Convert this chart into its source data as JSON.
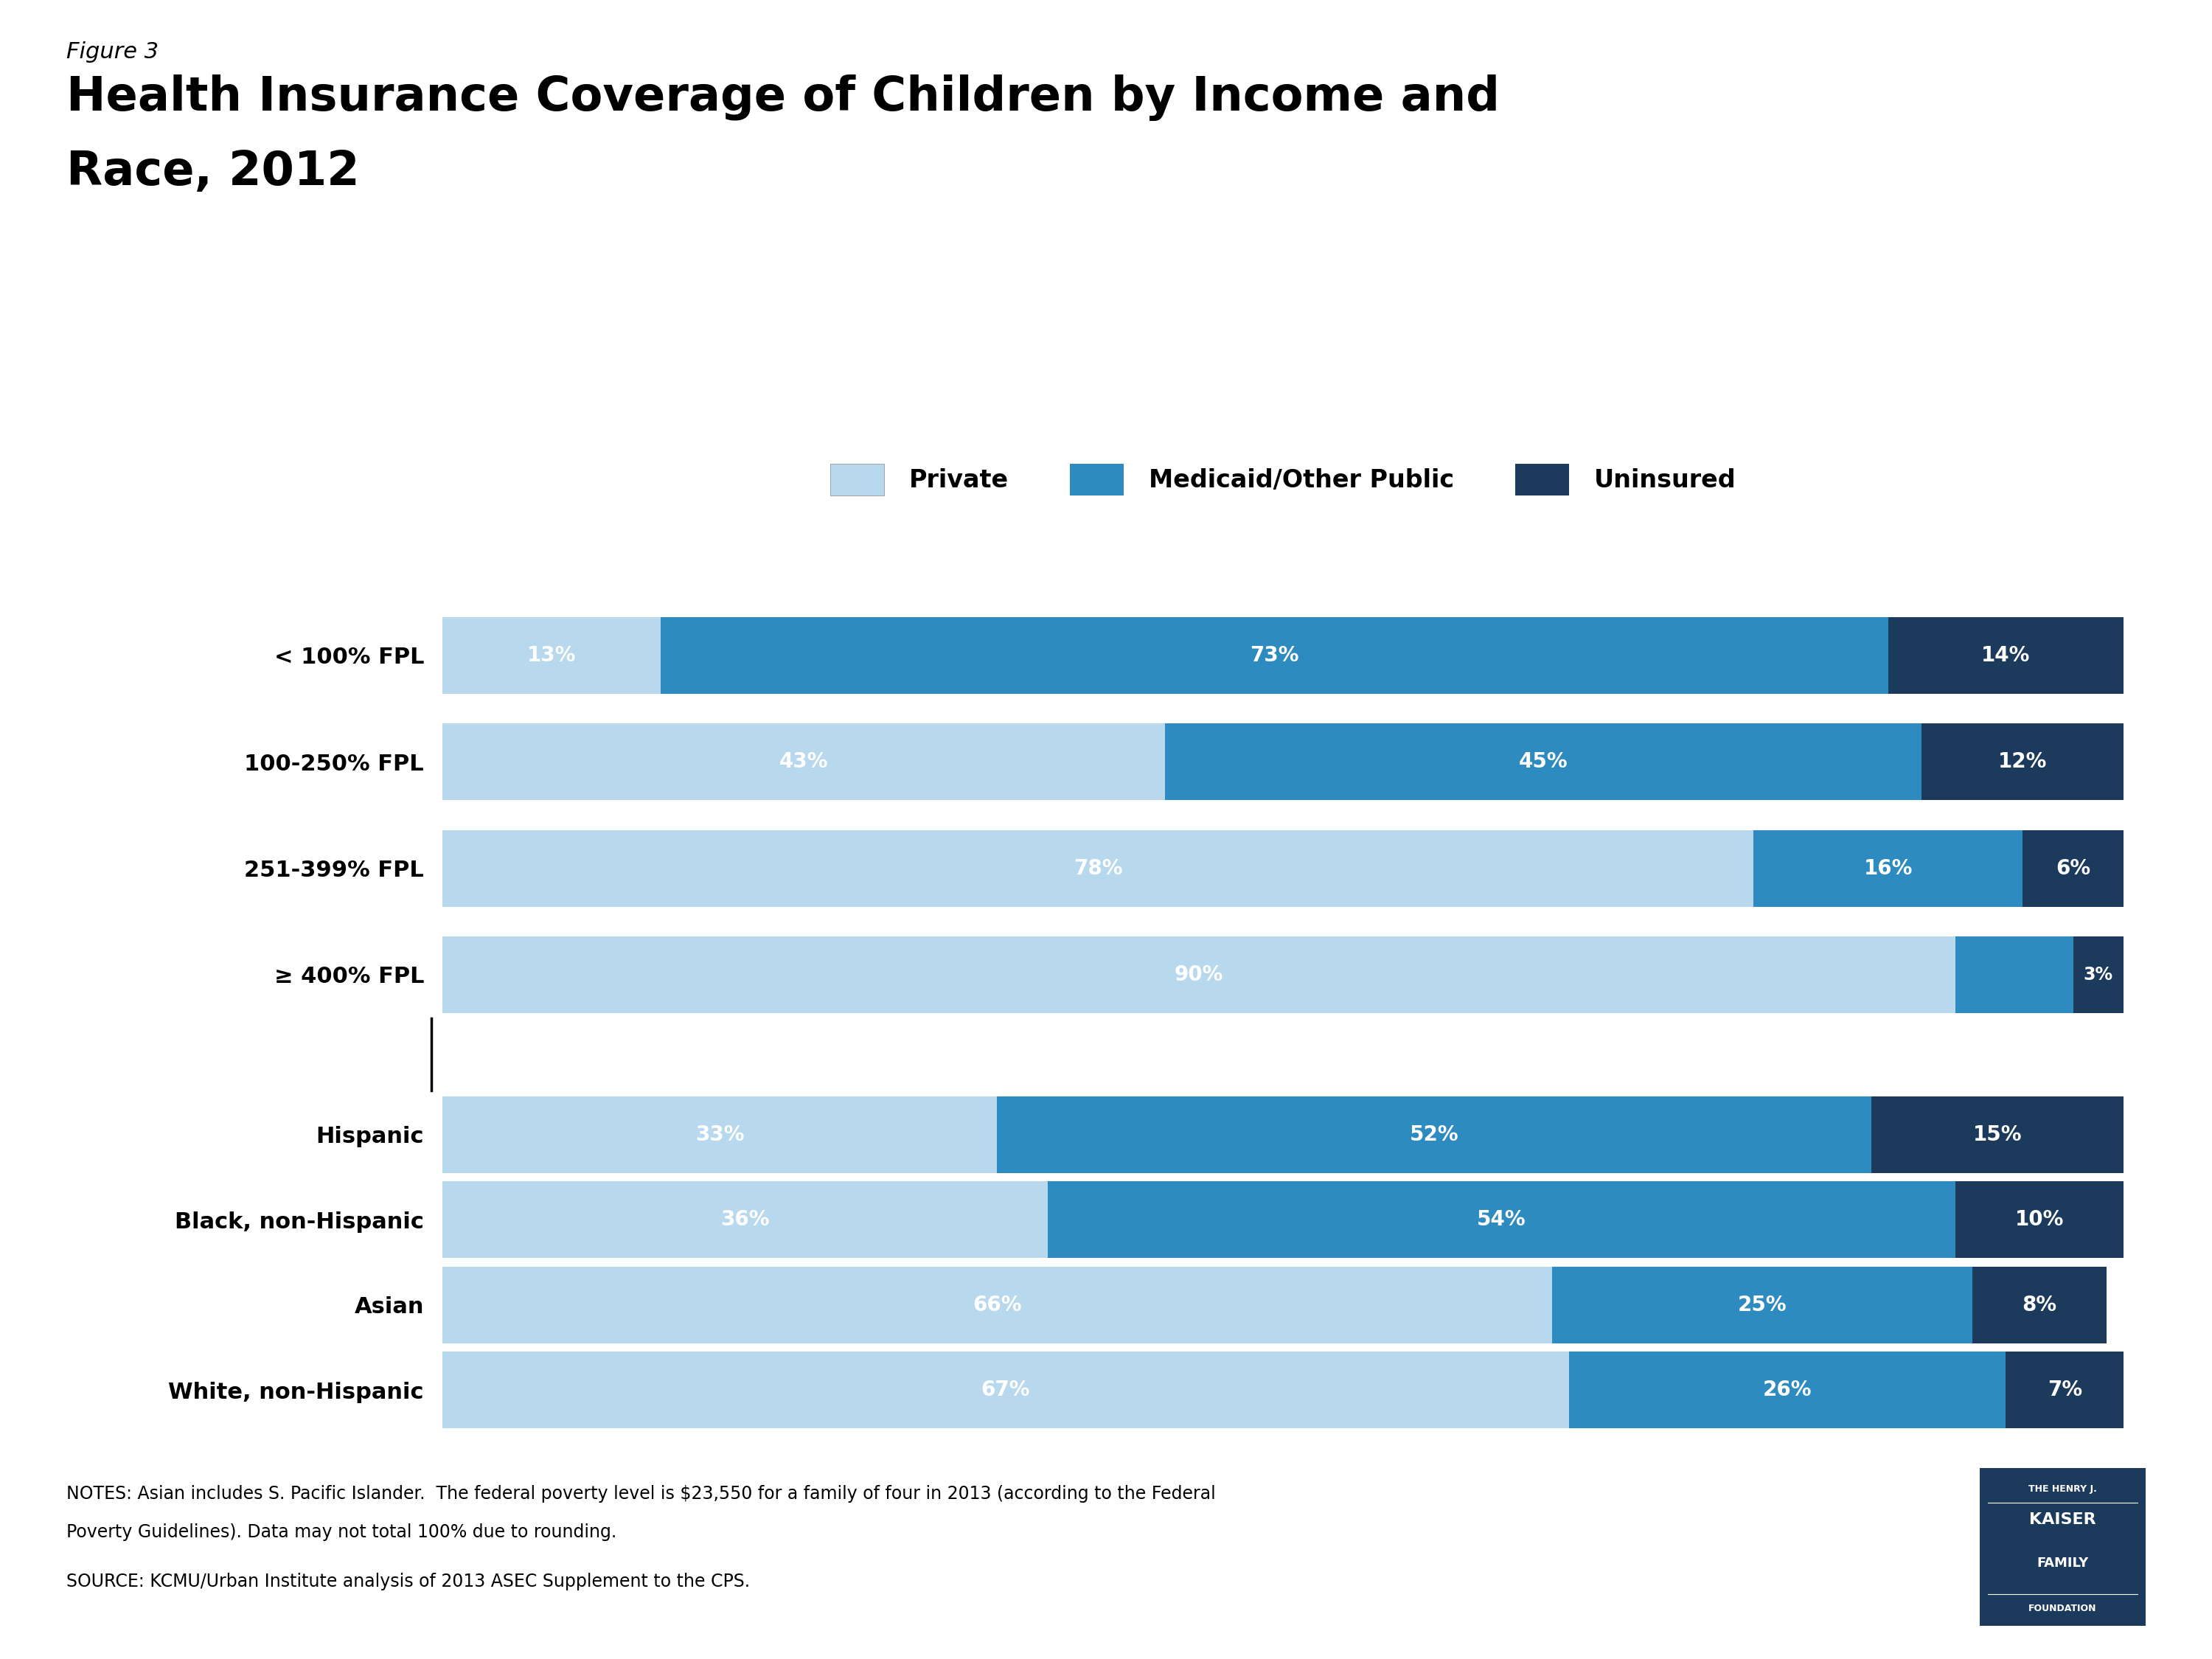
{
  "figure_label": "Figure 3",
  "title_line1": "Health Insurance Coverage of Children by Income and",
  "title_line2": "Race, 2012",
  "categories": [
    "< 100% FPL",
    "100-250% FPL",
    "251-399% FPL",
    "≥ 400% FPL",
    "Hispanic",
    "Black, non-Hispanic",
    "Asian",
    "White, non-Hispanic"
  ],
  "private": [
    13,
    43,
    78,
    90,
    33,
    36,
    66,
    67
  ],
  "medicaid": [
    73,
    45,
    16,
    7,
    52,
    54,
    25,
    26
  ],
  "uninsured": [
    14,
    12,
    6,
    3,
    15,
    10,
    8,
    7
  ],
  "color_private": "#b8d9ed",
  "color_medicaid": "#2e8bc0",
  "color_uninsured": "#1b3a5c",
  "legend_labels": [
    "Private",
    "Medicaid/Other Public",
    "Uninsured"
  ],
  "notes_line1": "NOTES: Asian includes S. Pacific Islander.  The federal poverty level is $23,550 for a family of four in 2013 (according to the Federal",
  "notes_line2": "Poverty Guidelines). Data may not total 100% due to rounding.",
  "source_line": "SOURCE: KCMU/Urban Institute analysis of 2013 ASEC Supplement to the CPS.",
  "bg_color": "#ffffff",
  "bar_height": 0.72,
  "income_group_size": 4,
  "label_fontsize": 20,
  "ytick_fontsize": 22,
  "legend_fontsize": 24,
  "title_fontsize": 46,
  "figure_label_fontsize": 22,
  "notes_fontsize": 17
}
